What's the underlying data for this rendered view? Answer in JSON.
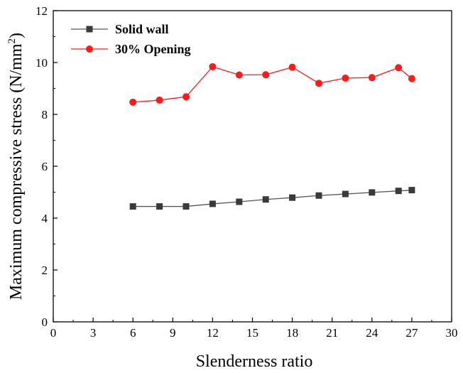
{
  "chart_data": {
    "type": "line",
    "xlabel": "Slenderness ratio",
    "ylabel": "Maximum compressive stress (N/mm",
    "ylabel_sup": "2",
    "ylabel_close": ")",
    "xlim": [
      0,
      30
    ],
    "ylim": [
      0,
      12
    ],
    "xticks": [
      0,
      3,
      6,
      9,
      12,
      15,
      18,
      21,
      24,
      27,
      30
    ],
    "yticks": [
      0,
      2,
      4,
      6,
      8,
      10,
      12
    ],
    "grid": false,
    "legend_position": "top-left",
    "x": [
      6,
      8,
      10,
      12,
      14,
      16,
      18,
      20,
      22,
      24,
      26,
      27
    ],
    "series": [
      {
        "name": "Solid wall",
        "marker": "square",
        "line_color": "#555555",
        "marker_color": "#3a3a3a",
        "values": [
          4.45,
          4.45,
          4.45,
          4.55,
          4.63,
          4.72,
          4.79,
          4.87,
          4.93,
          4.99,
          5.05,
          5.08
        ]
      },
      {
        "name": "30% Opening",
        "marker": "circle",
        "line_color": "#ff1a1a",
        "marker_color": "#ff1a1a",
        "values": [
          8.47,
          8.55,
          8.68,
          9.84,
          9.52,
          9.53,
          9.82,
          9.2,
          9.4,
          9.42,
          9.8,
          9.38
        ]
      }
    ]
  }
}
